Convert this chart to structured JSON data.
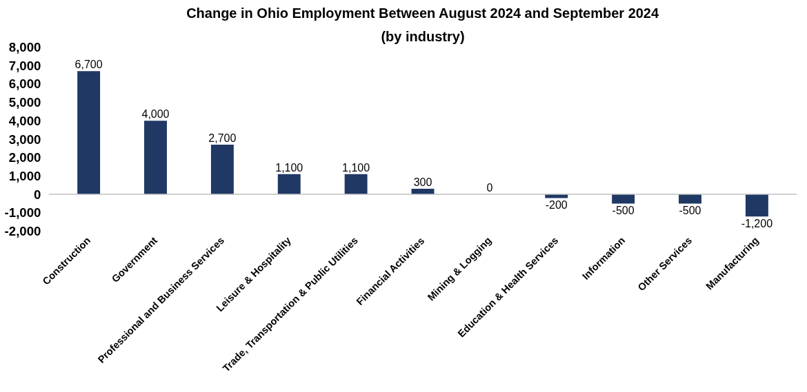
{
  "chart_data": {
    "type": "bar",
    "title": "Change in Ohio Employment Between August 2024 and September 2024",
    "subtitle": "(by industry)",
    "categories": [
      "Construction",
      "Government",
      "Professional and Business Services",
      "Leisure & Hospitality",
      "Trade, Transportation & Public Utilities",
      "Financial Activities",
      "Mining & Logging",
      "Education & Health Services",
      "Information",
      "Other Services",
      "Manufacturing"
    ],
    "values": [
      6700,
      4000,
      2700,
      1100,
      1100,
      300,
      0,
      -200,
      -500,
      -500,
      -1200
    ],
    "color": "#1f3864",
    "ylim": [
      -2000,
      8000
    ],
    "yticks": [
      {
        "value": -2000,
        "label": "-2,000"
      },
      {
        "value": -1000,
        "label": "-1,000"
      },
      0,
      {
        "value": 1000,
        "label": "1,000"
      },
      {
        "value": 2000,
        "label": "2,000"
      },
      {
        "value": 3000,
        "label": "3,000"
      },
      {
        "value": 4000,
        "label": "4,000"
      },
      {
        "value": 5000,
        "label": "5,000"
      },
      {
        "value": 6000,
        "label": "6,000"
      },
      {
        "value": 7000,
        "label": "7,000"
      },
      {
        "value": 8000,
        "label": "8,000"
      }
    ],
    "value_labels": [
      "6,700",
      "4,000",
      "2,700",
      "1,100",
      "1,100",
      "300",
      "0",
      "-200",
      "-500",
      "-500",
      "-1,200"
    ],
    "ref_lines": [
      {
        "axis": "y",
        "value": 0,
        "color": "#bfbfbf"
      }
    ]
  }
}
